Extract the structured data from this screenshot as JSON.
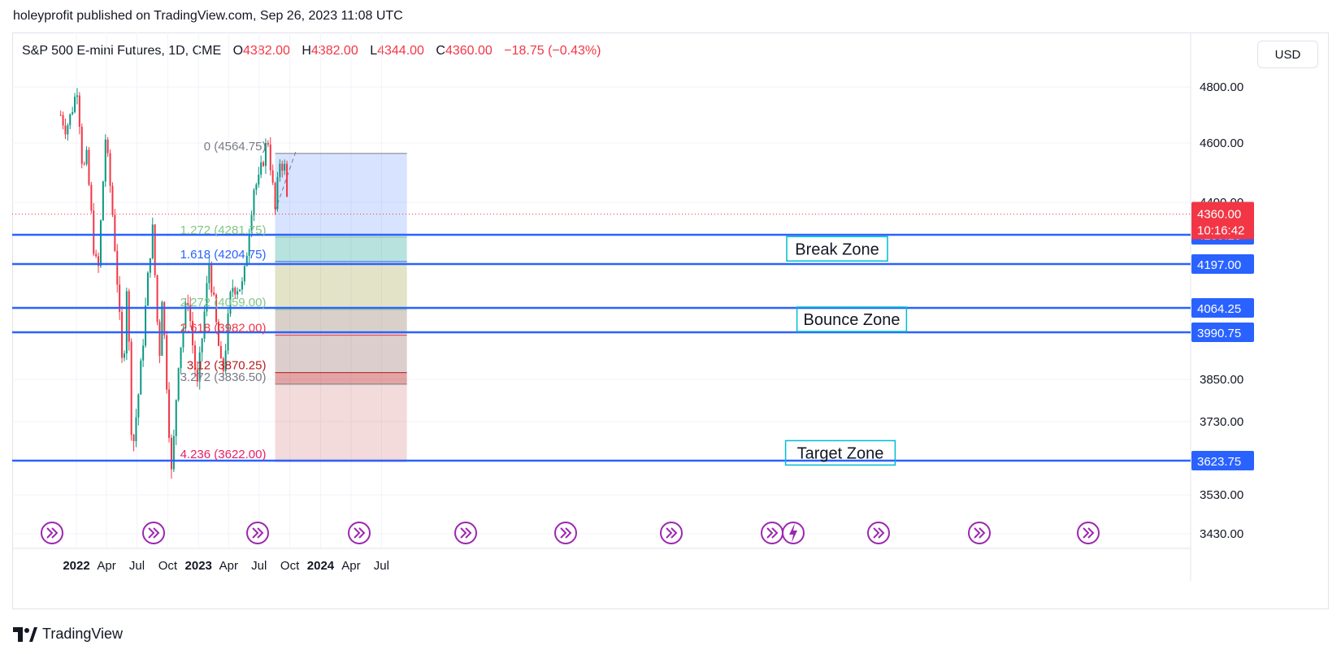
{
  "header": {
    "published": "holeyprofit published on TradingView.com, Sep 26, 2023 11:08 UTC"
  },
  "legend": {
    "symbol": "S&P 500 E-mini Futures, 1D, CME",
    "o_label": "O",
    "o_value": "4382.00",
    "h_label": "H",
    "h_value": "4382.00",
    "l_label": "L",
    "l_value": "4344.00",
    "c_label": "C",
    "c_value": "4360.00",
    "change": "−18.75 (−0.43%)"
  },
  "currency": "USD",
  "brand": "TradingView",
  "colors": {
    "up": "#089981",
    "down": "#f23645",
    "hline": "#2962ff",
    "zone_box": "#00bcd4",
    "event_icon": "#9c27b0"
  },
  "chart_data": {
    "type": "candlestick",
    "title": "S&P 500 E-mini Futures, 1D, CME",
    "y_ticks": [
      "4800.00",
      "4600.00",
      "4400.00",
      "3850.00",
      "3730.00",
      "3530.00",
      "3430.00"
    ],
    "y_tick_values": [
      4800,
      4600,
      4400,
      3850,
      3730,
      3530,
      3430
    ],
    "x_ticks": [
      "2022",
      "Apr",
      "Jul",
      "Oct",
      "2023",
      "Apr",
      "Jul",
      "Oct",
      "2024",
      "Apr",
      "Jul"
    ],
    "x_tick_dates": [
      "2022-01-01",
      "2022-04-01",
      "2022-07-01",
      "2022-10-01",
      "2023-01-01",
      "2023-04-01",
      "2023-07-01",
      "2023-10-01",
      "2024-01-01",
      "2024-04-01",
      "2024-07-01"
    ],
    "x_range": [
      "2021-11-15",
      "2024-09-15"
    ],
    "last_price": {
      "value": 4360.0,
      "label": "4360.00",
      "countdown": "10:16:42"
    },
    "price_path": [
      [
        "2021-11-15",
        4700
      ],
      [
        "2021-12-01",
        4650
      ],
      [
        "2021-12-15",
        4700
      ],
      [
        "2021-12-31",
        4780
      ],
      [
        "2022-01-04",
        4800
      ],
      [
        "2022-01-20",
        4500
      ],
      [
        "2022-02-01",
        4550
      ],
      [
        "2022-02-24",
        4220
      ],
      [
        "2022-03-07",
        4170
      ],
      [
        "2022-03-29",
        4620
      ],
      [
        "2022-04-15",
        4420
      ],
      [
        "2022-05-03",
        4150
      ],
      [
        "2022-05-20",
        3850
      ],
      [
        "2022-06-01",
        4150
      ],
      [
        "2022-06-17",
        3640
      ],
      [
        "2022-07-10",
        3850
      ],
      [
        "2022-08-16",
        4320
      ],
      [
        "2022-09-06",
        3900
      ],
      [
        "2022-09-12",
        4140
      ],
      [
        "2022-10-13",
        3570
      ],
      [
        "2022-11-01",
        3900
      ],
      [
        "2022-11-30",
        4100
      ],
      [
        "2022-12-28",
        3820
      ],
      [
        "2023-02-02",
        4200
      ],
      [
        "2023-03-13",
        3850
      ],
      [
        "2023-04-10",
        4130
      ],
      [
        "2023-05-15",
        4130
      ],
      [
        "2023-06-15",
        4450
      ],
      [
        "2023-06-30",
        4470
      ],
      [
        "2023-07-27",
        4620
      ],
      [
        "2023-08-18",
        4370
      ],
      [
        "2023-09-01",
        4540
      ],
      [
        "2023-09-15",
        4520
      ],
      [
        "2023-09-26",
        4360
      ]
    ],
    "horizontal_lines": [
      {
        "value": 4289.25,
        "label": "4289.25"
      },
      {
        "value": 4197.0,
        "label": "4197.00"
      },
      {
        "value": 4064.25,
        "label": "4064.25"
      },
      {
        "value": 3990.75,
        "label": "3990.75"
      },
      {
        "value": 3623.75,
        "label": "3623.75"
      }
    ],
    "fib_levels": [
      {
        "label": "0 (4564.75)",
        "value": 4564.75,
        "color": "#787b86"
      },
      {
        "label": "1.272 (4281.75)",
        "value": 4281.75,
        "color": "#81c784"
      },
      {
        "label": "1.618 (4204.75)",
        "value": 4204.75,
        "color": "#2962ff"
      },
      {
        "label": "2.272 (4059.00)",
        "value": 4059.0,
        "color": "#81c784"
      },
      {
        "label": "2.618 (3982.00)",
        "value": 3982.0,
        "color": "#f23645"
      },
      {
        "label": "3.12 (3870.25)",
        "value": 3870.25,
        "color": "#b71c1c"
      },
      {
        "label": "3.272 (3836.50)",
        "value": 3836.5,
        "color": "#787b86"
      },
      {
        "label": "4.236 (3622.00)",
        "value": 3622.0,
        "color": "#e91e63"
      }
    ],
    "fib_start_date": "2023-08-18",
    "fib_end_date": "2024-09-15",
    "zones": [
      {
        "label": "Break Zone",
        "value": 4245
      },
      {
        "label": "Bounce Zone",
        "value": 4030
      },
      {
        "label": "Target Zone",
        "value": 3645
      }
    ],
    "events_count": 11
  }
}
